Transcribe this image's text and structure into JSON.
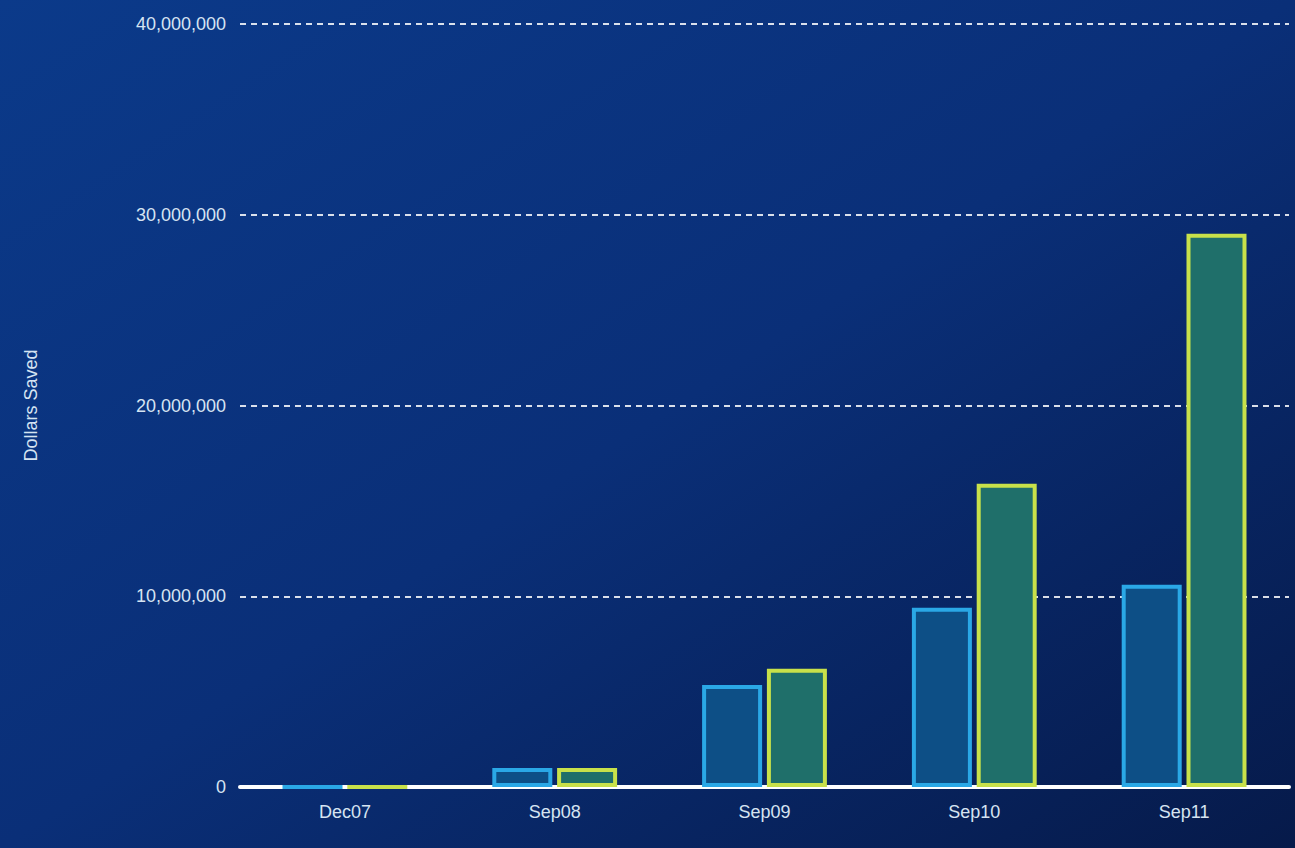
{
  "chart_data": {
    "type": "bar",
    "y_label": "Dollars Saved",
    "categories": [
      "Dec07",
      "Sep08",
      "Sep09",
      "Sep10",
      "Sep11"
    ],
    "series": [
      {
        "color": "#0d4f86",
        "values": [
          0,
          1000000,
          5350000,
          9400000,
          10600000
        ]
      },
      {
        "color": "#1f6f6a",
        "values": [
          0,
          1000000,
          6200000,
          15900000,
          29000000
        ]
      }
    ],
    "ylim": [
      0,
      40000000
    ],
    "yticks": [
      0,
      {
        "value": 10000000,
        "label": "10,000,000"
      },
      {
        "value": 20000000,
        "label": "20,000,000"
      },
      {
        "value": 30000000,
        "label": "30,000,000"
      },
      {
        "value": 40000000,
        "label": "40,000,000"
      }
    ],
    "grid": true
  }
}
